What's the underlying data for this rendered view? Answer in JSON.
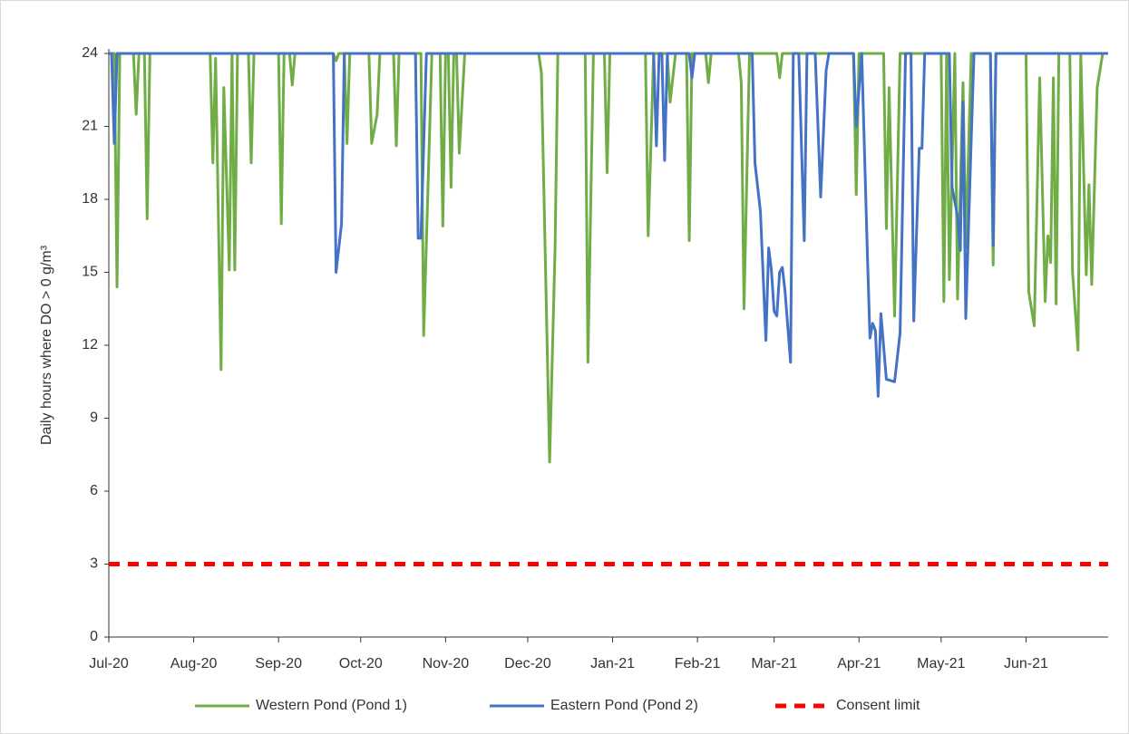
{
  "chart_data": {
    "type": "line",
    "ylabel": "Daily hours where DO > 0 g/m³",
    "xlim": [
      0,
      365
    ],
    "xticks": [
      {
        "value": 0,
        "label": "Jul-20"
      },
      {
        "value": 31,
        "label": "Aug-20"
      },
      {
        "value": 62,
        "label": "Sep-20"
      },
      {
        "value": 92,
        "label": "Oct-20"
      },
      {
        "value": 123,
        "label": "Nov-20"
      },
      {
        "value": 153,
        "label": "Dec-20"
      },
      {
        "value": 184,
        "label": "Jan-21"
      },
      {
        "value": 215,
        "label": "Feb-21"
      },
      {
        "value": 243,
        "label": "Mar-21"
      },
      {
        "value": 274,
        "label": "Apr-21"
      },
      {
        "value": 304,
        "label": "May-21"
      },
      {
        "value": 335,
        "label": "Jun-21"
      }
    ],
    "ylim": [
      0,
      24
    ],
    "yticks": [
      0,
      3,
      6,
      9,
      12,
      15,
      18,
      21,
      24
    ],
    "legend": "bottom",
    "series": [
      {
        "name": "Western Pond (Pond 1)",
        "color": "#70ad47",
        "x": [
          0,
          2,
          3,
          4,
          9,
          10,
          11,
          13,
          14,
          15,
          37,
          38,
          39,
          41,
          42,
          44,
          45,
          46,
          47,
          51,
          52,
          53,
          62,
          63,
          64,
          66,
          67,
          68,
          82,
          83,
          84,
          86,
          87,
          88,
          95,
          96,
          98,
          99,
          104,
          105,
          106,
          114,
          115,
          118,
          121,
          122,
          123,
          124,
          125,
          126,
          127,
          128,
          130,
          157,
          158,
          161,
          163,
          164,
          174,
          175,
          177,
          181,
          182,
          183,
          196,
          197,
          199,
          204,
          205,
          207,
          211,
          212,
          213,
          218,
          219,
          220,
          230,
          231,
          232,
          234,
          244,
          245,
          246,
          272,
          273,
          274,
          283,
          284,
          285,
          287,
          289,
          304,
          305,
          306,
          307,
          309,
          310,
          312,
          313,
          315,
          322,
          323,
          324,
          335,
          336,
          338,
          340,
          342,
          343,
          344,
          345,
          346,
          347,
          351,
          352,
          354,
          355,
          357,
          358,
          359,
          361,
          363,
          365
        ],
        "values": [
          24,
          24,
          14.4,
          24,
          24,
          21.5,
          24,
          24,
          17.2,
          24,
          24,
          19.5,
          23.8,
          11,
          22.6,
          15.1,
          24,
          15.1,
          24,
          24,
          19.5,
          24,
          24,
          17,
          24,
          24,
          22.7,
          24,
          24,
          23.7,
          24,
          24,
          20.3,
          24,
          24,
          20.3,
          21.5,
          24,
          24,
          20.2,
          24,
          24,
          12.4,
          24,
          24,
          16.9,
          24,
          24,
          18.5,
          24,
          24,
          19.9,
          24,
          24,
          23.2,
          7.2,
          16,
          24,
          24,
          11.3,
          24,
          24,
          19.1,
          24,
          24,
          16.5,
          24,
          24,
          22,
          24,
          24,
          16.3,
          24,
          24,
          22.8,
          24,
          24,
          22.8,
          13.5,
          24,
          24,
          23,
          24,
          24,
          18.2,
          24,
          24,
          16.8,
          22.6,
          13.2,
          24,
          24,
          13.8,
          24,
          14.7,
          24,
          13.9,
          22.8,
          16,
          24,
          24,
          15.3,
          24,
          24,
          14.2,
          12.8,
          23,
          13.8,
          16.5,
          15.4,
          23,
          13.7,
          24,
          24,
          15,
          11.8,
          24,
          14.9,
          18.6,
          14.5,
          22.6,
          24,
          24
        ]
      },
      {
        "name": "Eastern Pond (Pond 2)",
        "color": "#4472c4",
        "x": [
          0,
          1,
          2,
          3,
          82,
          83,
          85,
          86,
          112,
          113,
          114,
          116,
          199,
          200,
          201,
          202,
          203,
          204,
          212,
          213,
          214,
          235,
          236,
          238,
          240,
          241,
          242,
          243,
          244,
          245,
          246,
          247,
          249,
          250,
          252,
          254,
          255,
          258,
          260,
          262,
          263,
          272,
          273,
          275,
          277,
          278,
          279,
          280,
          281,
          282,
          284,
          287,
          289,
          291,
          293,
          294,
          296,
          297,
          298,
          307,
          308,
          310,
          311,
          312,
          313,
          315,
          316,
          322,
          323,
          324,
          365
        ],
        "values": [
          24,
          24,
          20.3,
          24,
          24,
          15,
          17,
          24,
          24,
          16.4,
          16.4,
          24,
          24,
          20.2,
          24,
          24,
          19.6,
          24,
          24,
          23,
          24,
          24,
          19.5,
          17.5,
          12.2,
          16,
          15.1,
          13.4,
          13.2,
          15,
          15.2,
          14.2,
          11.3,
          24,
          24,
          16.3,
          24,
          24,
          18.1,
          23.3,
          24,
          24,
          21,
          24,
          16,
          12.3,
          12.9,
          12.6,
          9.9,
          13.3,
          10.6,
          10.5,
          12.5,
          24,
          24,
          13,
          20.1,
          20.1,
          24,
          24,
          18.5,
          17.3,
          15.9,
          22,
          13.1,
          20.5,
          24,
          24,
          16.1,
          24,
          24
        ]
      },
      {
        "name": "Consent limit",
        "color": "#ff0000",
        "style": "dashed",
        "x": [
          0,
          365
        ],
        "values": [
          3,
          3
        ]
      }
    ]
  }
}
